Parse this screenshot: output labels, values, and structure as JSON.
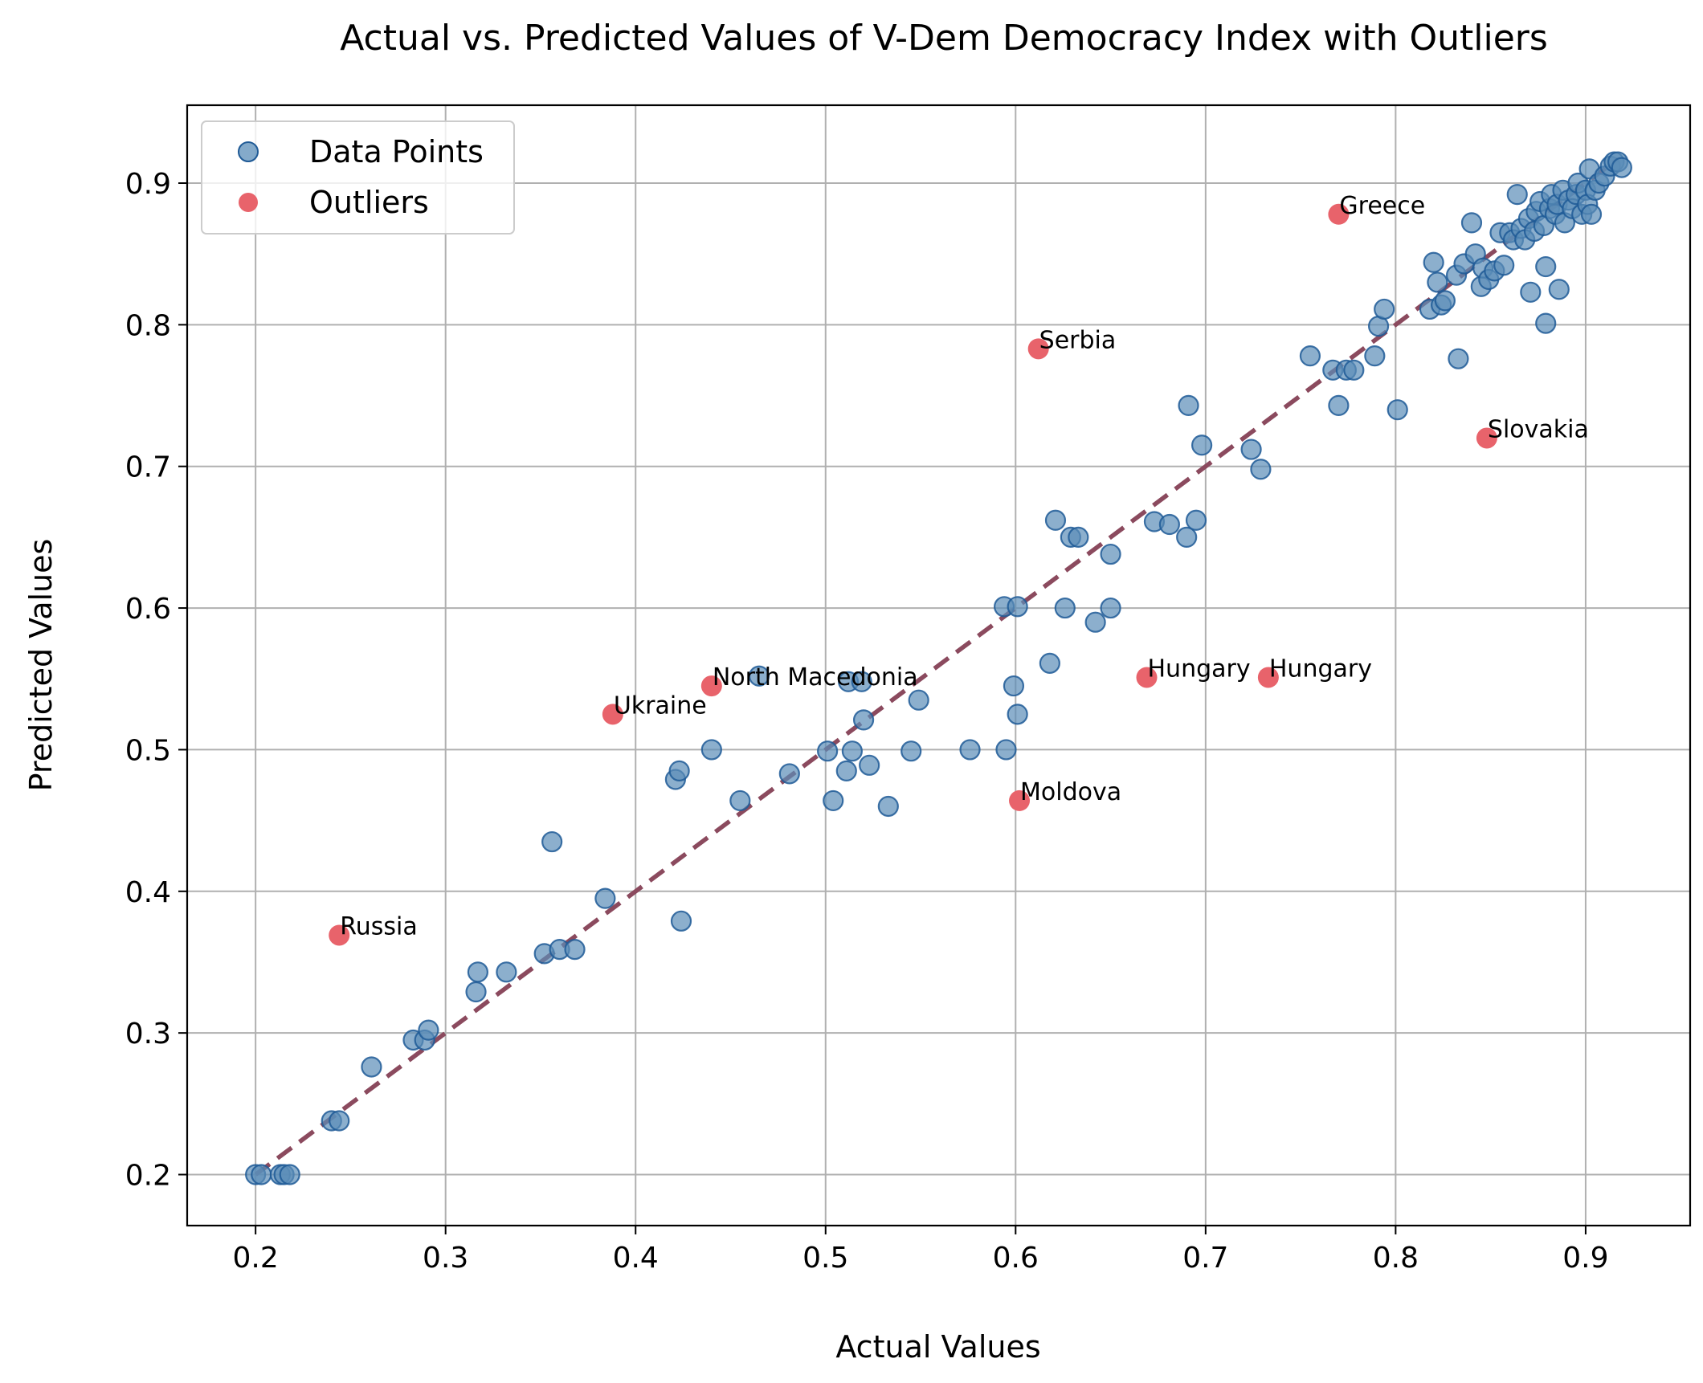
{
  "chart_data": {
    "type": "scatter",
    "title": "Actual vs. Predicted Values of V-Dem Democracy Index with Outliers",
    "xlabel": "Actual Values",
    "ylabel": "Predicted Values",
    "xlim": [
      0.164,
      0.955
    ],
    "ylim": [
      0.164,
      0.955
    ],
    "xticks": [
      "0.2",
      "0.3",
      "0.4",
      "0.5",
      "0.6",
      "0.7",
      "0.8",
      "0.9"
    ],
    "yticks": [
      "0.2",
      "0.3",
      "0.4",
      "0.5",
      "0.6",
      "0.7",
      "0.8",
      "0.9"
    ],
    "grid": true,
    "legend_position": "upper-left",
    "colors": {
      "data_points": "#5b8db8",
      "data_points_edge": "#1f5a96",
      "outliers": "#e8636b",
      "fit_line": "#8b4a5e",
      "grid": "#b0b0b0"
    },
    "reference_line": {
      "style": "dashed",
      "from": [
        0.2,
        0.2
      ],
      "to": [
        0.917,
        0.917
      ]
    },
    "series": [
      {
        "name": "Data Points",
        "points": [
          [
            0.2,
            0.2
          ],
          [
            0.203,
            0.2
          ],
          [
            0.213,
            0.2
          ],
          [
            0.215,
            0.2
          ],
          [
            0.218,
            0.2
          ],
          [
            0.24,
            0.238
          ],
          [
            0.244,
            0.238
          ],
          [
            0.261,
            0.276
          ],
          [
            0.283,
            0.295
          ],
          [
            0.289,
            0.295
          ],
          [
            0.291,
            0.302
          ],
          [
            0.316,
            0.329
          ],
          [
            0.317,
            0.343
          ],
          [
            0.332,
            0.343
          ],
          [
            0.352,
            0.356
          ],
          [
            0.356,
            0.435
          ],
          [
            0.36,
            0.359
          ],
          [
            0.368,
            0.359
          ],
          [
            0.384,
            0.395
          ],
          [
            0.421,
            0.479
          ],
          [
            0.423,
            0.485
          ],
          [
            0.424,
            0.379
          ],
          [
            0.44,
            0.5
          ],
          [
            0.455,
            0.464
          ],
          [
            0.465,
            0.552
          ],
          [
            0.481,
            0.483
          ],
          [
            0.501,
            0.499
          ],
          [
            0.504,
            0.464
          ],
          [
            0.511,
            0.485
          ],
          [
            0.512,
            0.548
          ],
          [
            0.514,
            0.499
          ],
          [
            0.519,
            0.548
          ],
          [
            0.52,
            0.521
          ],
          [
            0.523,
            0.489
          ],
          [
            0.533,
            0.46
          ],
          [
            0.545,
            0.499
          ],
          [
            0.549,
            0.535
          ],
          [
            0.576,
            0.5
          ],
          [
            0.594,
            0.601
          ],
          [
            0.595,
            0.5
          ],
          [
            0.599,
            0.545
          ],
          [
            0.601,
            0.525
          ],
          [
            0.601,
            0.601
          ],
          [
            0.618,
            0.561
          ],
          [
            0.621,
            0.662
          ],
          [
            0.626,
            0.6
          ],
          [
            0.629,
            0.65
          ],
          [
            0.633,
            0.65
          ],
          [
            0.642,
            0.59
          ],
          [
            0.65,
            0.638
          ],
          [
            0.65,
            0.6
          ],
          [
            0.673,
            0.661
          ],
          [
            0.681,
            0.659
          ],
          [
            0.69,
            0.65
          ],
          [
            0.691,
            0.743
          ],
          [
            0.695,
            0.662
          ],
          [
            0.698,
            0.715
          ],
          [
            0.724,
            0.712
          ],
          [
            0.729,
            0.698
          ],
          [
            0.755,
            0.778
          ],
          [
            0.767,
            0.768
          ],
          [
            0.77,
            0.743
          ],
          [
            0.774,
            0.768
          ],
          [
            0.778,
            0.768
          ],
          [
            0.789,
            0.778
          ],
          [
            0.791,
            0.799
          ],
          [
            0.794,
            0.811
          ],
          [
            0.801,
            0.74
          ],
          [
            0.818,
            0.811
          ],
          [
            0.82,
            0.844
          ],
          [
            0.822,
            0.83
          ],
          [
            0.824,
            0.814
          ],
          [
            0.826,
            0.817
          ],
          [
            0.832,
            0.835
          ],
          [
            0.833,
            0.776
          ],
          [
            0.836,
            0.843
          ],
          [
            0.84,
            0.872
          ],
          [
            0.842,
            0.85
          ],
          [
            0.845,
            0.827
          ],
          [
            0.846,
            0.84
          ],
          [
            0.849,
            0.832
          ],
          [
            0.852,
            0.838
          ],
          [
            0.855,
            0.865
          ],
          [
            0.857,
            0.842
          ],
          [
            0.86,
            0.865
          ],
          [
            0.862,
            0.86
          ],
          [
            0.864,
            0.892
          ],
          [
            0.866,
            0.868
          ],
          [
            0.868,
            0.86
          ],
          [
            0.87,
            0.875
          ],
          [
            0.871,
            0.823
          ],
          [
            0.873,
            0.866
          ],
          [
            0.874,
            0.88
          ],
          [
            0.876,
            0.887
          ],
          [
            0.878,
            0.87
          ],
          [
            0.879,
            0.841
          ],
          [
            0.879,
            0.801
          ],
          [
            0.881,
            0.882
          ],
          [
            0.882,
            0.892
          ],
          [
            0.884,
            0.878
          ],
          [
            0.885,
            0.885
          ],
          [
            0.886,
            0.825
          ],
          [
            0.888,
            0.895
          ],
          [
            0.889,
            0.872
          ],
          [
            0.891,
            0.888
          ],
          [
            0.893,
            0.882
          ],
          [
            0.895,
            0.892
          ],
          [
            0.896,
            0.9
          ],
          [
            0.898,
            0.878
          ],
          [
            0.9,
            0.895
          ],
          [
            0.901,
            0.885
          ],
          [
            0.902,
            0.91
          ],
          [
            0.903,
            0.878
          ],
          [
            0.905,
            0.895
          ],
          [
            0.907,
            0.9
          ],
          [
            0.91,
            0.905
          ],
          [
            0.913,
            0.912
          ],
          [
            0.915,
            0.915
          ],
          [
            0.917,
            0.915
          ],
          [
            0.919,
            0.911
          ]
        ]
      },
      {
        "name": "Outliers",
        "points": [
          [
            0.244,
            0.369,
            "Russia"
          ],
          [
            0.388,
            0.525,
            "Ukraine"
          ],
          [
            0.44,
            0.545,
            "North Macedonia"
          ],
          [
            0.602,
            0.464,
            "Moldova"
          ],
          [
            0.612,
            0.783,
            "Serbia"
          ],
          [
            0.669,
            0.551,
            "Hungary"
          ],
          [
            0.733,
            0.551,
            "Hungary"
          ],
          [
            0.77,
            0.878,
            "Greece"
          ],
          [
            0.848,
            0.72,
            "Slovakia"
          ]
        ]
      }
    ]
  }
}
